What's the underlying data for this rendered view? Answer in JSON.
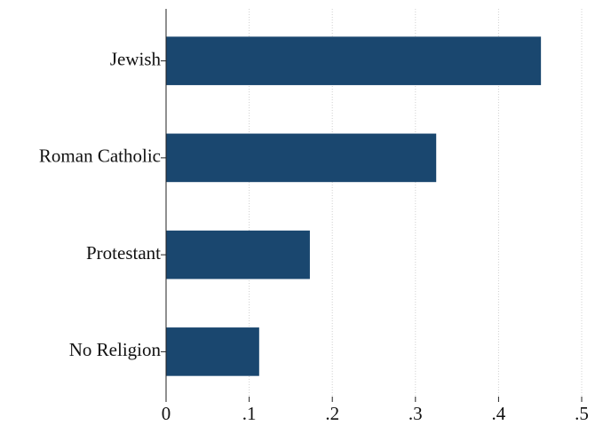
{
  "chart_data": {
    "type": "barh",
    "categories": [
      "Jewish",
      "Roman Catholic",
      "Protestant",
      "No Religion"
    ],
    "values": [
      0.451,
      0.325,
      0.173,
      0.112
    ],
    "color": "#1a476f",
    "xlim": [
      0,
      0.5
    ],
    "xticks": [
      0,
      {
        "value": 0.1,
        "label": ".1"
      },
      {
        "value": 0.2,
        "label": ".2"
      },
      {
        "value": 0.3,
        "label": ".3"
      },
      {
        "value": 0.4,
        "label": ".4"
      },
      {
        "value": 0.5,
        "label": ".5"
      }
    ],
    "grid": true
  }
}
